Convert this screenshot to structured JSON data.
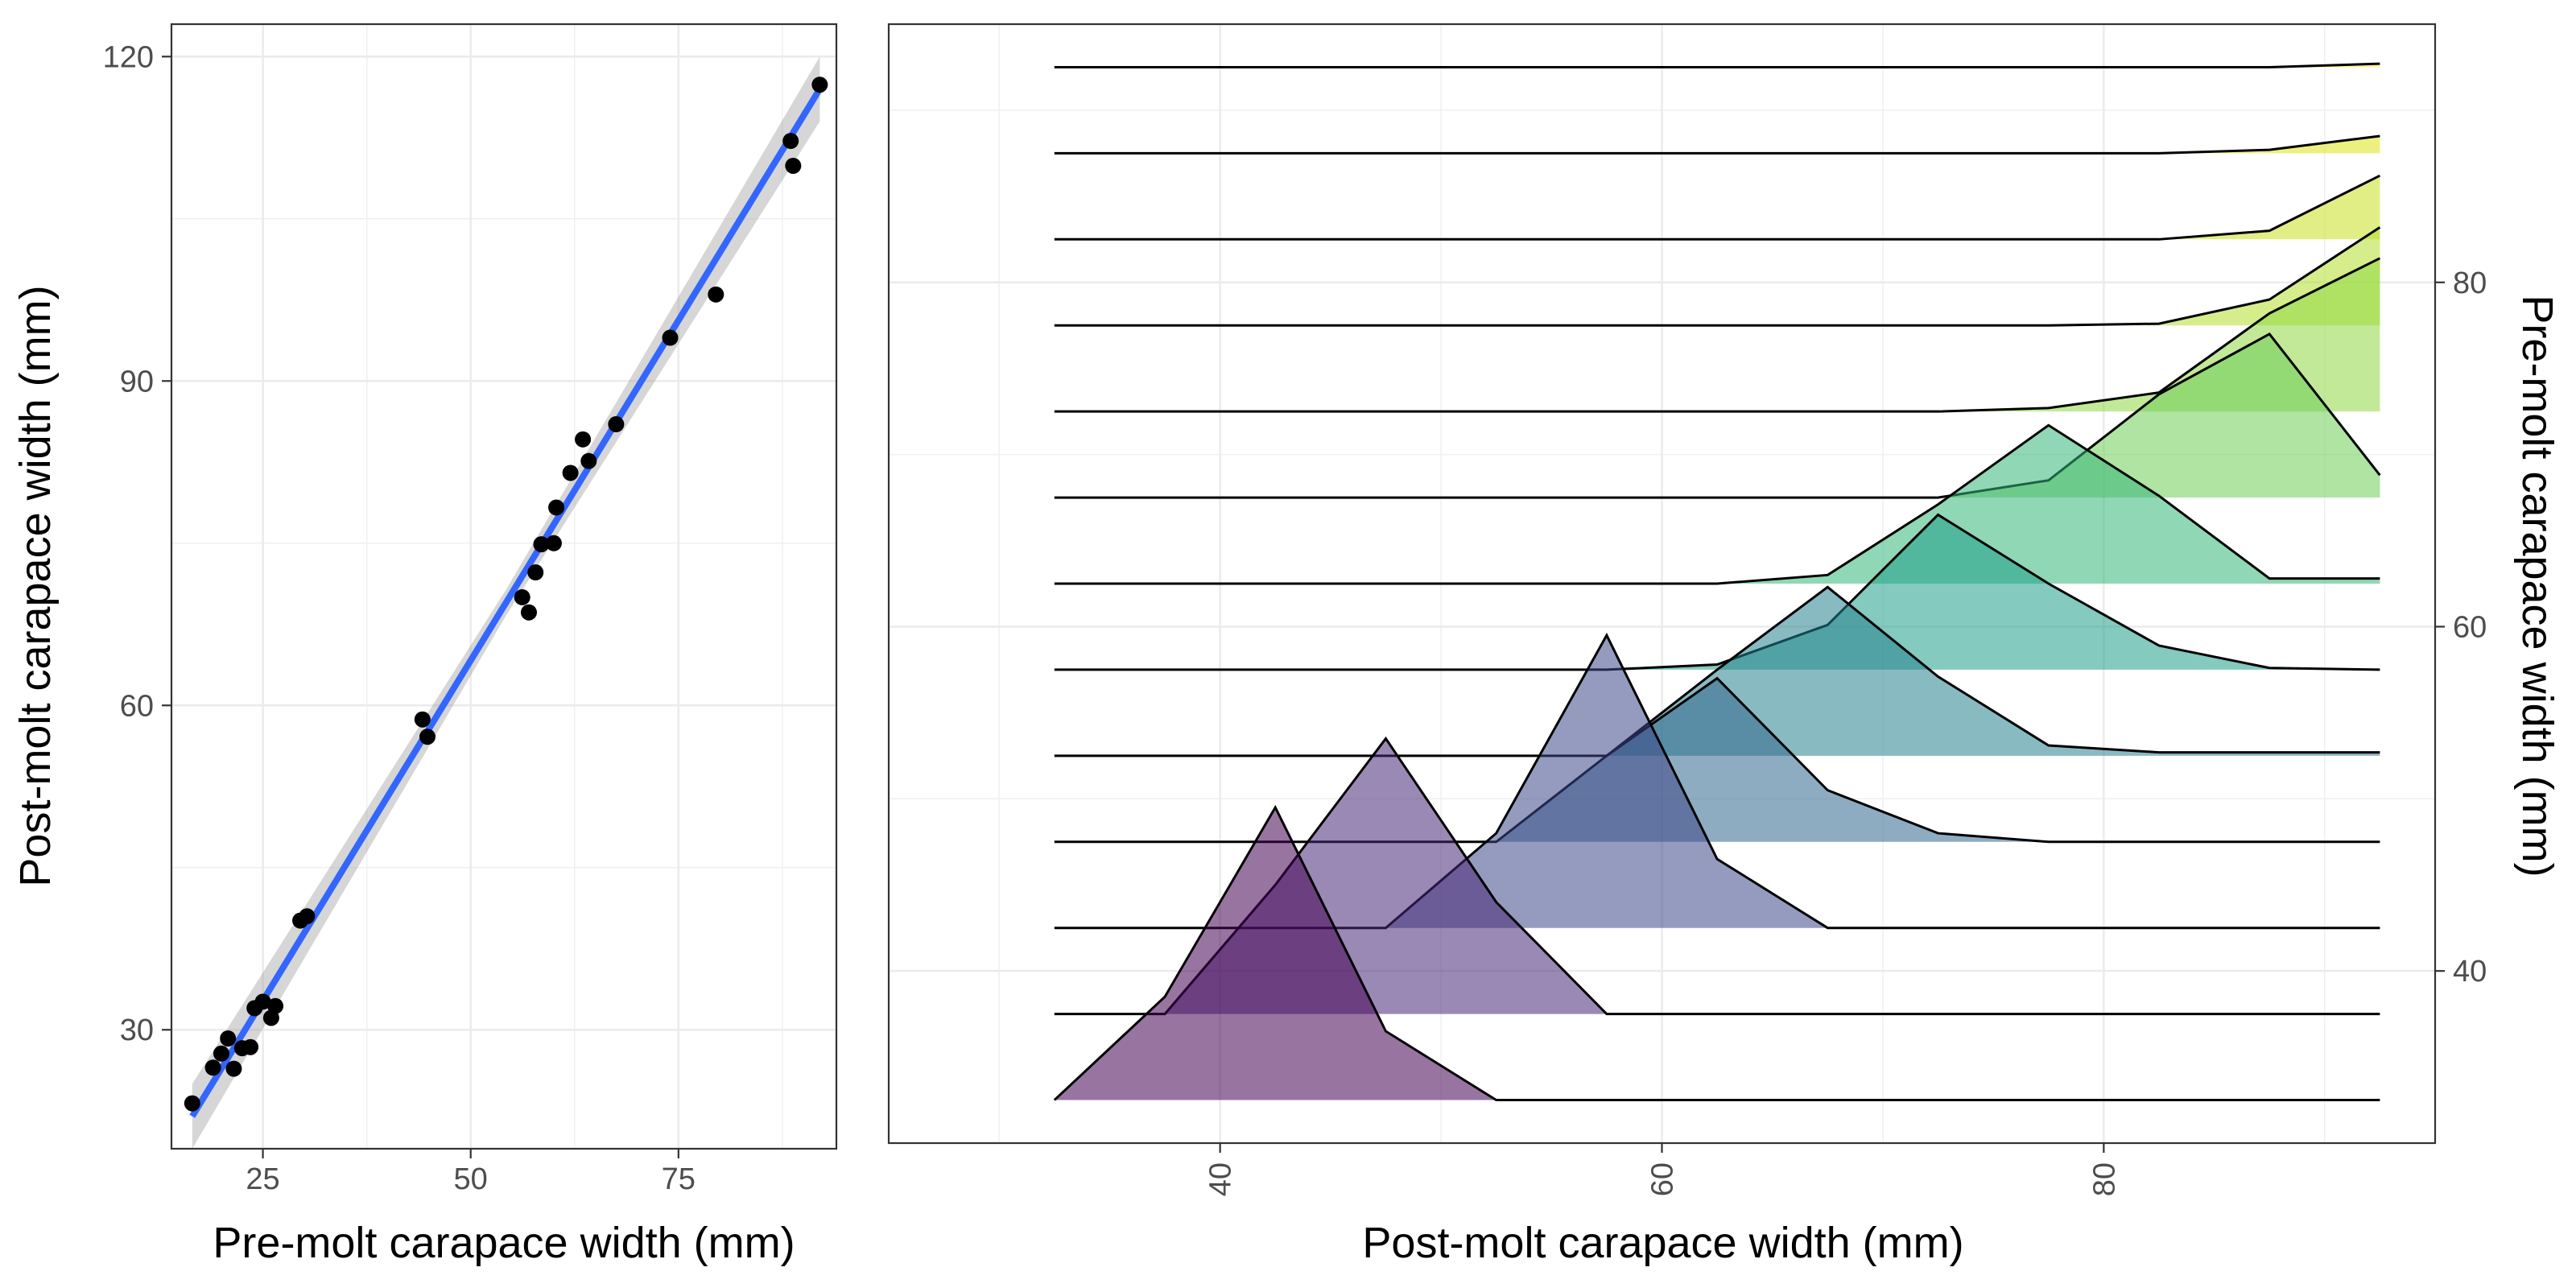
{
  "chart_data": [
    {
      "type": "scatter",
      "xlabel": "Pre-molt carapace width (mm)",
      "ylabel": "Post-molt carapace width (mm)",
      "xlim": [
        14,
        94
      ],
      "ylim": [
        19,
        123
      ],
      "xticks": [
        25,
        50,
        75
      ],
      "yticks": [
        30,
        60,
        90,
        120
      ],
      "grid": true,
      "points": [
        {
          "x": 16.5,
          "y": 23.2
        },
        {
          "x": 19.0,
          "y": 26.5
        },
        {
          "x": 20.0,
          "y": 27.8
        },
        {
          "x": 20.8,
          "y": 29.2
        },
        {
          "x": 21.5,
          "y": 26.4
        },
        {
          "x": 22.5,
          "y": 28.3
        },
        {
          "x": 23.5,
          "y": 28.4
        },
        {
          "x": 24.0,
          "y": 32.0
        },
        {
          "x": 25.0,
          "y": 32.6
        },
        {
          "x": 26.0,
          "y": 31.1
        },
        {
          "x": 26.5,
          "y": 32.2
        },
        {
          "x": 29.5,
          "y": 40.1
        },
        {
          "x": 30.3,
          "y": 40.5
        },
        {
          "x": 44.2,
          "y": 58.7
        },
        {
          "x": 44.8,
          "y": 57.1
        },
        {
          "x": 56.2,
          "y": 70.0
        },
        {
          "x": 57.0,
          "y": 68.6
        },
        {
          "x": 57.8,
          "y": 72.3
        },
        {
          "x": 58.5,
          "y": 74.9
        },
        {
          "x": 60.0,
          "y": 75.0
        },
        {
          "x": 60.3,
          "y": 78.3
        },
        {
          "x": 62.0,
          "y": 81.5
        },
        {
          "x": 63.5,
          "y": 84.6
        },
        {
          "x": 64.2,
          "y": 82.6
        },
        {
          "x": 67.5,
          "y": 86.0
        },
        {
          "x": 74.0,
          "y": 94.0
        },
        {
          "x": 79.5,
          "y": 98.0
        },
        {
          "x": 88.5,
          "y": 112.2
        },
        {
          "x": 88.8,
          "y": 109.9
        },
        {
          "x": 92.0,
          "y": 117.4
        }
      ],
      "fit_line": {
        "x": [
          16.5,
          92.0
        ],
        "y": [
          22.0,
          117.0
        ],
        "color": "#3366ff"
      }
    },
    {
      "type": "area",
      "subtype": "ridgeline",
      "xlabel": "Post-molt carapace width (mm)",
      "ylabel": "Pre-molt carapace width (mm)",
      "xlim": [
        25,
        95
      ],
      "ylim": [
        30,
        95
      ],
      "xticks": [
        40,
        60,
        80
      ],
      "yticks": [
        40,
        60,
        80
      ],
      "y_axis_position": "right",
      "grid": true,
      "ridge_x": [
        32.5,
        37.5,
        42.5,
        47.5,
        52.5,
        57.5,
        62.5,
        67.5,
        72.5,
        77.5,
        82.5,
        87.5,
        92.5
      ],
      "series": [
        {
          "baseline": 32.5,
          "color": "#440154",
          "values": [
            0,
            6,
            17,
            4,
            0,
            0,
            0,
            0,
            0,
            0,
            0,
            0,
            0
          ]
        },
        {
          "baseline": 37.5,
          "color": "#482878",
          "values": [
            0,
            0,
            7.5,
            16,
            6.5,
            0,
            0,
            0,
            0,
            0,
            0,
            0,
            0
          ]
        },
        {
          "baseline": 42.5,
          "color": "#3e4989",
          "values": [
            0,
            0,
            0,
            0,
            5.5,
            17,
            4,
            0,
            0,
            0,
            0,
            0,
            0
          ]
        },
        {
          "baseline": 47.5,
          "color": "#31688e",
          "values": [
            0,
            0,
            0,
            0,
            0,
            5,
            9.5,
            3,
            0.5,
            0,
            0,
            0,
            0
          ]
        },
        {
          "baseline": 52.5,
          "color": "#26828e",
          "values": [
            0,
            0,
            0,
            0,
            0,
            0,
            5,
            9.8,
            4.6,
            0.6,
            0.2,
            0.2,
            0.2
          ]
        },
        {
          "baseline": 57.5,
          "color": "#1f9e89",
          "values": [
            0,
            0,
            0,
            0,
            0,
            0,
            0.3,
            2.6,
            9,
            5,
            1.4,
            0.1,
            0
          ]
        },
        {
          "baseline": 62.5,
          "color": "#35b779",
          "values": [
            0,
            0,
            0,
            0,
            0,
            0,
            0,
            0.5,
            4.6,
            9.2,
            5.1,
            0.3,
            0.3
          ]
        },
        {
          "baseline": 67.5,
          "color": "#6ece58",
          "values": [
            0,
            0,
            0,
            0,
            0,
            0,
            0,
            0,
            0,
            1,
            6,
            9.5,
            1.3
          ]
        },
        {
          "baseline": 72.5,
          "color": "#8fd744",
          "values": [
            0,
            0,
            0,
            0,
            0,
            0,
            0,
            0,
            0,
            0.2,
            1.1,
            5.7,
            8.9
          ]
        },
        {
          "baseline": 77.5,
          "color": "#b5de2b",
          "values": [
            0,
            0,
            0,
            0,
            0,
            0,
            0,
            0,
            0,
            0,
            0.1,
            1.5,
            5.7
          ]
        },
        {
          "baseline": 82.5,
          "color": "#c8e020",
          "values": [
            0,
            0,
            0,
            0,
            0,
            0,
            0,
            0,
            0,
            0,
            0,
            0.5,
            3.7
          ]
        },
        {
          "baseline": 87.5,
          "color": "#dde318",
          "values": [
            0,
            0,
            0,
            0,
            0,
            0,
            0,
            0,
            0,
            0,
            0,
            0.2,
            1
          ]
        },
        {
          "baseline": 92.5,
          "color": "#fde725",
          "values": [
            0,
            0,
            0,
            0,
            0,
            0,
            0,
            0,
            0,
            0,
            0,
            0,
            0.2
          ]
        }
      ]
    }
  ]
}
